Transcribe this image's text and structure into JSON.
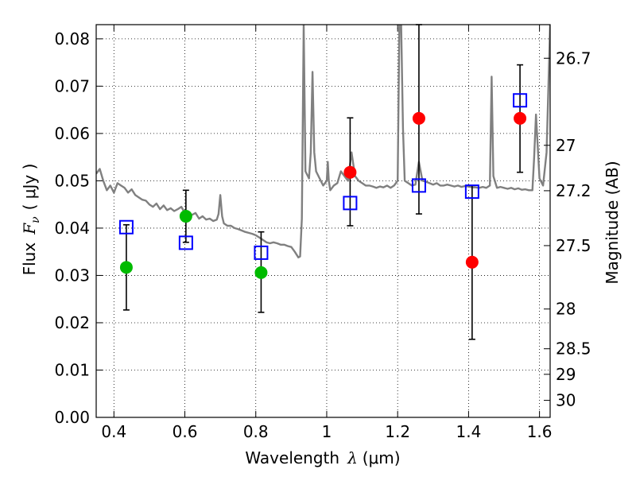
{
  "chart_data": {
    "type": "scatter",
    "xlabel_prefix": "Wavelength",
    "xlabel_symbol": "λ",
    "xlabel_unit": "(μm)",
    "ylabel_prefix": "Flux",
    "ylabel_symbol": "F",
    "ylabel_subscript": "ν",
    "ylabel_unit": "( μJy )",
    "y2label": "Magnitude (AB)",
    "xlim": [
      0.35,
      1.63
    ],
    "ylim": [
      0.0,
      0.083
    ],
    "grid": true,
    "x_ticks": [
      0.4,
      0.6,
      0.8,
      1.0,
      1.2,
      1.4,
      1.6
    ],
    "x_tick_labels": [
      "0.4",
      "0.6",
      "0.8",
      "1",
      "1.2",
      "1.4",
      "1.6"
    ],
    "y_ticks": [
      0.0,
      0.01,
      0.02,
      0.03,
      0.04,
      0.05,
      0.06,
      0.07,
      0.08
    ],
    "y_tick_labels": [
      "0.00",
      "0.01",
      "0.02",
      "0.03",
      "0.04",
      "0.05",
      "0.06",
      "0.07",
      "0.08"
    ],
    "y2_ticks": [
      {
        "label": "26.7",
        "flux": 0.0759
      },
      {
        "label": "27",
        "flux": 0.0575
      },
      {
        "label": "27.2",
        "flux": 0.0479
      },
      {
        "label": "27.5",
        "flux": 0.0363
      },
      {
        "label": "28",
        "flux": 0.0229
      },
      {
        "label": "28.5",
        "flux": 0.0145
      },
      {
        "label": "29",
        "flux": 0.0091
      },
      {
        "label": "30",
        "flux": 0.0036
      }
    ],
    "model_spectrum": {
      "name": "SED model",
      "color": "#808080",
      "x": [
        0.35,
        0.36,
        0.37,
        0.38,
        0.39,
        0.4,
        0.41,
        0.42,
        0.43,
        0.44,
        0.45,
        0.46,
        0.47,
        0.48,
        0.49,
        0.5,
        0.51,
        0.52,
        0.53,
        0.54,
        0.55,
        0.56,
        0.57,
        0.58,
        0.59,
        0.6,
        0.61,
        0.62,
        0.63,
        0.64,
        0.65,
        0.66,
        0.67,
        0.68,
        0.69,
        0.695,
        0.7,
        0.705,
        0.71,
        0.72,
        0.73,
        0.74,
        0.75,
        0.76,
        0.77,
        0.78,
        0.79,
        0.8,
        0.81,
        0.82,
        0.83,
        0.84,
        0.85,
        0.86,
        0.87,
        0.88,
        0.89,
        0.9,
        0.91,
        0.92,
        0.925,
        0.93,
        0.935,
        0.94,
        0.95,
        0.955,
        0.96,
        0.965,
        0.97,
        0.98,
        0.99,
        1.0,
        1.003,
        1.006,
        1.01,
        1.02,
        1.03,
        1.04,
        1.05,
        1.06,
        1.07,
        1.08,
        1.09,
        1.1,
        1.11,
        1.12,
        1.13,
        1.14,
        1.15,
        1.16,
        1.17,
        1.18,
        1.19,
        1.2,
        1.205,
        1.21,
        1.215,
        1.22,
        1.23,
        1.24,
        1.25,
        1.26,
        1.27,
        1.28,
        1.29,
        1.3,
        1.31,
        1.32,
        1.33,
        1.34,
        1.35,
        1.36,
        1.37,
        1.38,
        1.39,
        1.4,
        1.41,
        1.42,
        1.43,
        1.44,
        1.45,
        1.46,
        1.465,
        1.47,
        1.48,
        1.49,
        1.5,
        1.51,
        1.52,
        1.53,
        1.54,
        1.55,
        1.56,
        1.57,
        1.58,
        1.585,
        1.59,
        1.6,
        1.61,
        1.62,
        1.63
      ],
      "y": [
        0.0515,
        0.0525,
        0.05,
        0.048,
        0.049,
        0.0475,
        0.0495,
        0.049,
        0.0485,
        0.0475,
        0.0482,
        0.047,
        0.0465,
        0.046,
        0.0458,
        0.045,
        0.0445,
        0.0452,
        0.044,
        0.0448,
        0.0438,
        0.0442,
        0.0436,
        0.044,
        0.0445,
        0.0432,
        0.043,
        0.0428,
        0.0432,
        0.042,
        0.0425,
        0.0418,
        0.042,
        0.0415,
        0.0418,
        0.043,
        0.047,
        0.0425,
        0.041,
        0.0405,
        0.0405,
        0.04,
        0.0398,
        0.0395,
        0.0392,
        0.039,
        0.0388,
        0.0385,
        0.038,
        0.0375,
        0.037,
        0.0368,
        0.037,
        0.0368,
        0.0365,
        0.0365,
        0.0362,
        0.036,
        0.035,
        0.0338,
        0.034,
        0.042,
        0.083,
        0.052,
        0.0505,
        0.056,
        0.073,
        0.056,
        0.052,
        0.0505,
        0.049,
        0.05,
        0.054,
        0.05,
        0.048,
        0.049,
        0.0495,
        0.052,
        0.051,
        0.05,
        0.056,
        0.051,
        0.05,
        0.0495,
        0.049,
        0.049,
        0.0488,
        0.0485,
        0.0488,
        0.0486,
        0.049,
        0.0485,
        0.049,
        0.05,
        0.083,
        0.083,
        0.061,
        0.05,
        0.0495,
        0.049,
        0.0492,
        0.054,
        0.05,
        0.0498,
        0.0495,
        0.0492,
        0.0495,
        0.049,
        0.049,
        0.0492,
        0.049,
        0.0488,
        0.049,
        0.0487,
        0.0489,
        0.0488,
        0.0486,
        0.0486,
        0.0485,
        0.0487,
        0.0485,
        0.049,
        0.072,
        0.051,
        0.0485,
        0.0487,
        0.0485,
        0.0483,
        0.0485,
        0.0482,
        0.0484,
        0.0481,
        0.0482,
        0.048,
        0.048,
        0.055,
        0.064,
        0.0505,
        0.049,
        0.056,
        0.083
      ]
    },
    "series": [
      {
        "name": "green measurements",
        "marker": "circle",
        "color": "#00bb00",
        "points": [
          {
            "x": 0.435,
            "y": 0.0317,
            "lo": 0.0227,
            "hi": 0.0407
          },
          {
            "x": 0.603,
            "y": 0.0425,
            "lo": 0.037,
            "hi": 0.048
          },
          {
            "x": 0.815,
            "y": 0.0306,
            "lo": 0.0222,
            "hi": 0.0392
          }
        ]
      },
      {
        "name": "red measurements",
        "marker": "circle",
        "color": "#ff0000",
        "points": [
          {
            "x": 1.066,
            "y": 0.0518,
            "lo": 0.0405,
            "hi": 0.0633
          },
          {
            "x": 1.26,
            "y": 0.0632,
            "lo": 0.043,
            "hi": 0.083
          },
          {
            "x": 1.41,
            "y": 0.0328,
            "lo": 0.0165,
            "hi": 0.049
          },
          {
            "x": 1.545,
            "y": 0.0632,
            "lo": 0.0518,
            "hi": 0.0745
          }
        ]
      },
      {
        "name": "model synthetic photometry",
        "marker": "open-square",
        "color": "#0000ff",
        "points": [
          {
            "x": 0.435,
            "y": 0.0402
          },
          {
            "x": 0.603,
            "y": 0.0369
          },
          {
            "x": 0.815,
            "y": 0.0348
          },
          {
            "x": 1.066,
            "y": 0.0453
          },
          {
            "x": 1.26,
            "y": 0.049
          },
          {
            "x": 1.41,
            "y": 0.0477
          },
          {
            "x": 1.545,
            "y": 0.067
          }
        ]
      }
    ]
  }
}
